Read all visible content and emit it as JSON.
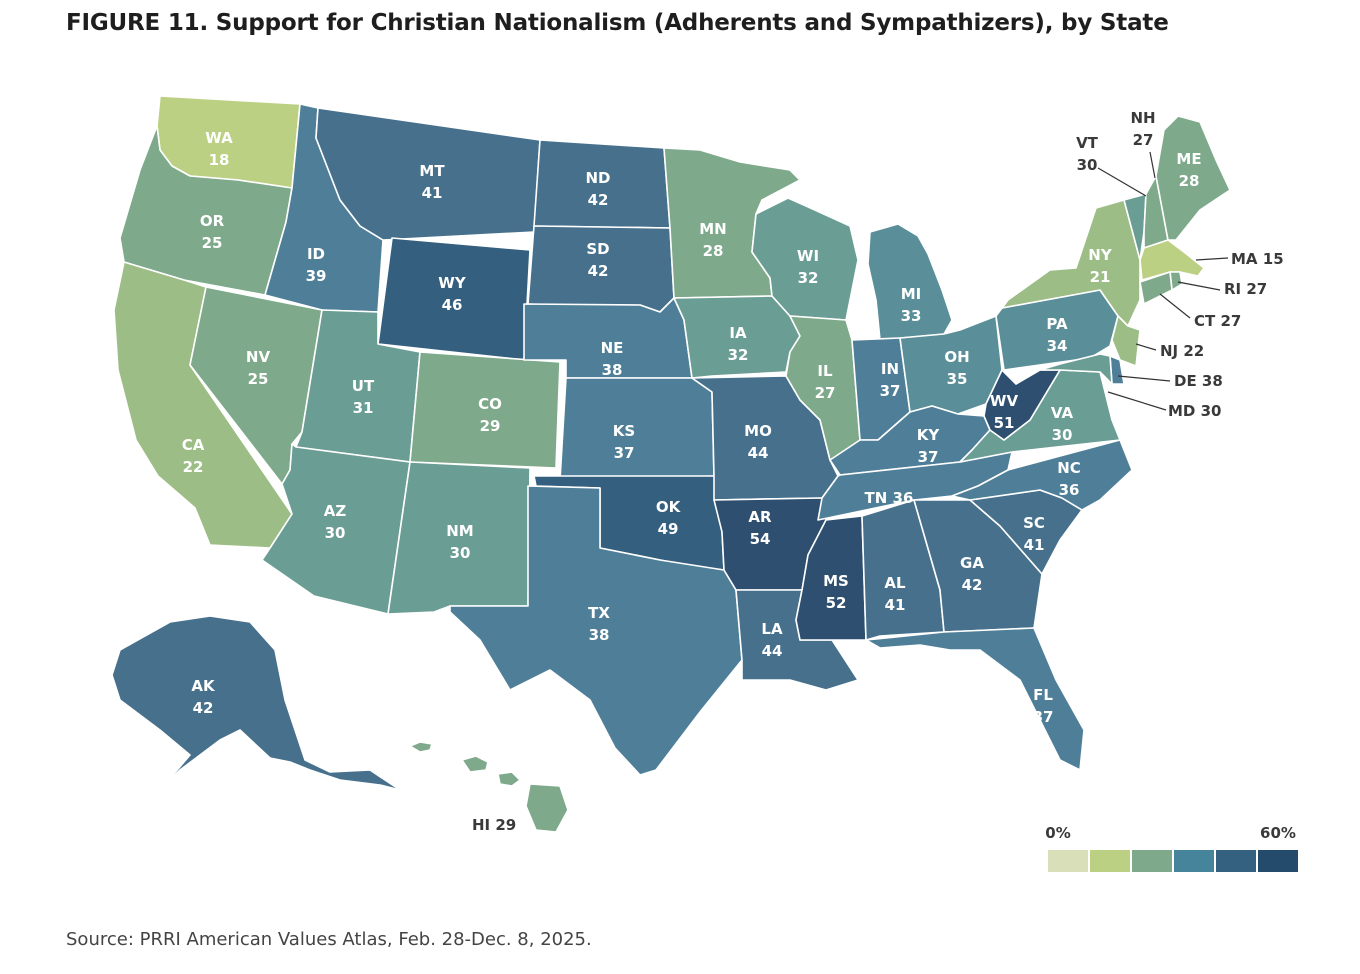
{
  "title": "FIGURE 11.  Support for Christian Nationalism (Adherents and Sympathizers), by State",
  "source": "Source: PRRI American Values Atlas, Feb. 28-Dec. 8, 2025.",
  "legend": {
    "min_label": "0%",
    "max_label": "60%",
    "colors": [
      "#d8dfb9",
      "#bcd083",
      "#7ea98a",
      "#46849b",
      "#33617f",
      "#244a6c"
    ]
  },
  "states": [
    {
      "abbr": "WA",
      "value": 18
    },
    {
      "abbr": "OR",
      "value": 25
    },
    {
      "abbr": "CA",
      "value": 22
    },
    {
      "abbr": "NV",
      "value": 25
    },
    {
      "abbr": "ID",
      "value": 39
    },
    {
      "abbr": "MT",
      "value": 41
    },
    {
      "abbr": "WY",
      "value": 46
    },
    {
      "abbr": "UT",
      "value": 31
    },
    {
      "abbr": "AZ",
      "value": 30
    },
    {
      "abbr": "CO",
      "value": 29
    },
    {
      "abbr": "NM",
      "value": 30
    },
    {
      "abbr": "ND",
      "value": 42
    },
    {
      "abbr": "SD",
      "value": 42
    },
    {
      "abbr": "NE",
      "value": 38
    },
    {
      "abbr": "KS",
      "value": 37
    },
    {
      "abbr": "OK",
      "value": 49
    },
    {
      "abbr": "TX",
      "value": 38
    },
    {
      "abbr": "MN",
      "value": 28
    },
    {
      "abbr": "IA",
      "value": 32
    },
    {
      "abbr": "MO",
      "value": 44
    },
    {
      "abbr": "AR",
      "value": 54
    },
    {
      "abbr": "LA",
      "value": 44
    },
    {
      "abbr": "WI",
      "value": 32
    },
    {
      "abbr": "IL",
      "value": 27
    },
    {
      "abbr": "MI",
      "value": 33
    },
    {
      "abbr": "IN",
      "value": 37
    },
    {
      "abbr": "OH",
      "value": 35
    },
    {
      "abbr": "KY",
      "value": 37
    },
    {
      "abbr": "TN",
      "value": 36
    },
    {
      "abbr": "MS",
      "value": 52
    },
    {
      "abbr": "AL",
      "value": 41
    },
    {
      "abbr": "GA",
      "value": 42
    },
    {
      "abbr": "FL",
      "value": 37
    },
    {
      "abbr": "SC",
      "value": 41
    },
    {
      "abbr": "NC",
      "value": 36
    },
    {
      "abbr": "VA",
      "value": 30
    },
    {
      "abbr": "WV",
      "value": 51
    },
    {
      "abbr": "PA",
      "value": 34
    },
    {
      "abbr": "NY",
      "value": 21
    },
    {
      "abbr": "VT",
      "value": 30
    },
    {
      "abbr": "NH",
      "value": 27
    },
    {
      "abbr": "ME",
      "value": 28
    },
    {
      "abbr": "MA",
      "value": 15
    },
    {
      "abbr": "RI",
      "value": 27
    },
    {
      "abbr": "CT",
      "value": 27
    },
    {
      "abbr": "NJ",
      "value": 22
    },
    {
      "abbr": "DE",
      "value": 38
    },
    {
      "abbr": "MD",
      "value": 30
    },
    {
      "abbr": "AK",
      "value": 42
    },
    {
      "abbr": "HI",
      "value": 29
    }
  ]
}
